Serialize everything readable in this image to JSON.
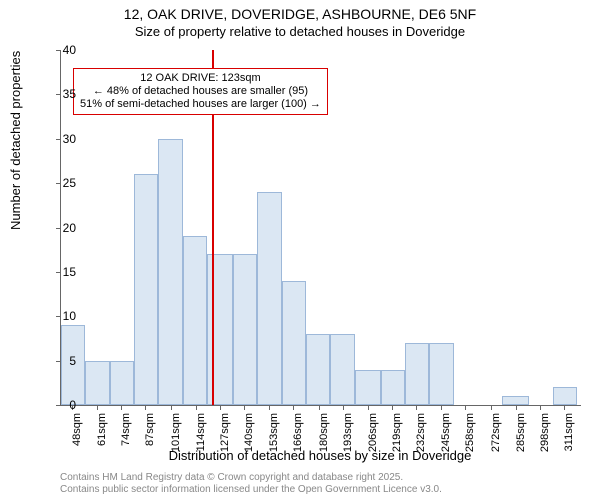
{
  "chart": {
    "type": "histogram",
    "title_main": "12, OAK DRIVE, DOVERIDGE, ASHBOURNE, DE6 5NF",
    "title_sub": "Size of property relative to detached houses in Doveridge",
    "title_fontsize": 14,
    "subtitle_fontsize": 13,
    "ylabel": "Number of detached properties",
    "xlabel": "Distribution of detached houses by size in Doveridge",
    "label_fontsize": 13,
    "tick_fontsize": 12,
    "ylim": [
      0,
      40
    ],
    "yticks": [
      0,
      5,
      10,
      15,
      20,
      25,
      30,
      35,
      40
    ],
    "xlim": [
      42,
      320
    ],
    "xticks": [
      48,
      61,
      74,
      87,
      101,
      114,
      127,
      140,
      153,
      166,
      180,
      193,
      206,
      219,
      232,
      245,
      258,
      272,
      285,
      298,
      311
    ],
    "xtick_labels": [
      "48sqm",
      "61sqm",
      "74sqm",
      "87sqm",
      "101sqm",
      "114sqm",
      "127sqm",
      "140sqm",
      "153sqm",
      "166sqm",
      "180sqm",
      "193sqm",
      "206sqm",
      "219sqm",
      "232sqm",
      "245sqm",
      "258sqm",
      "272sqm",
      "285sqm",
      "298sqm",
      "311sqm"
    ],
    "bins": [
      {
        "start": 42,
        "end": 55,
        "count": 9
      },
      {
        "start": 55,
        "end": 68,
        "count": 5
      },
      {
        "start": 68,
        "end": 81,
        "count": 5
      },
      {
        "start": 81,
        "end": 94,
        "count": 26
      },
      {
        "start": 94,
        "end": 107,
        "count": 30
      },
      {
        "start": 107,
        "end": 120,
        "count": 19
      },
      {
        "start": 120,
        "end": 134,
        "count": 17
      },
      {
        "start": 134,
        "end": 147,
        "count": 17
      },
      {
        "start": 147,
        "end": 160,
        "count": 24
      },
      {
        "start": 160,
        "end": 173,
        "count": 14
      },
      {
        "start": 173,
        "end": 186,
        "count": 8
      },
      {
        "start": 186,
        "end": 199,
        "count": 8
      },
      {
        "start": 199,
        "end": 213,
        "count": 4
      },
      {
        "start": 213,
        "end": 226,
        "count": 4
      },
      {
        "start": 226,
        "end": 239,
        "count": 7
      },
      {
        "start": 239,
        "end": 252,
        "count": 7
      },
      {
        "start": 252,
        "end": 265,
        "count": 0
      },
      {
        "start": 265,
        "end": 278,
        "count": 0
      },
      {
        "start": 278,
        "end": 292,
        "count": 1
      },
      {
        "start": 292,
        "end": 305,
        "count": 0
      },
      {
        "start": 305,
        "end": 318,
        "count": 2
      }
    ],
    "bar_fill": "#dbe7f3",
    "bar_stroke": "#9db8d9",
    "vline": {
      "x": 123,
      "color": "#d80000",
      "width": 2
    },
    "annotation": {
      "lines": [
        "12 OAK DRIVE: 123sqm",
        "← 48% of detached houses are smaller (95)",
        "51% of semi-detached houses are larger (100) →"
      ],
      "border_color": "#d80000",
      "background": "#ffffff",
      "fontsize": 11,
      "top_value": 38
    },
    "background_color": "#ffffff",
    "axis_color": "#666666"
  },
  "footer": {
    "line1": "Contains HM Land Registry data © Crown copyright and database right 2025.",
    "line2": "Contains public sector information licensed under the Open Government Licence v3.0.",
    "color": "#888888",
    "fontsize": 10
  }
}
